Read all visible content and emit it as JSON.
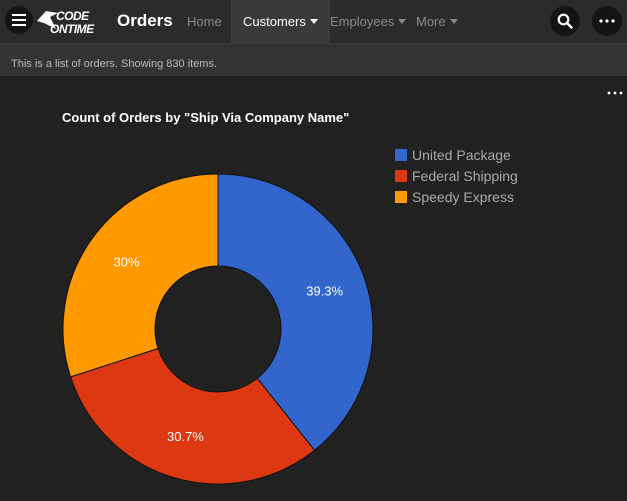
{
  "header": {
    "logo_line1": "CODE",
    "logo_line2": "ONTIME",
    "title": "Orders",
    "nav": [
      {
        "label": "Home"
      },
      {
        "label": "Customers"
      },
      {
        "label": "Employees"
      },
      {
        "label": "More"
      }
    ]
  },
  "info": {
    "text": "This is a list of orders. Showing 830 items."
  },
  "colors": {
    "united_package": "#3366cc",
    "federal_shipping": "#dc3912",
    "speedy_express": "#ff9900"
  },
  "icons": [
    "hamburger-menu-icon",
    "search-icon",
    "more-options-icon",
    "more-horizontal-icon"
  ],
  "chart_data": {
    "type": "pie",
    "title": "Count of Orders by \"Ship Via Company Name\"",
    "donut": true,
    "legend_position": "right",
    "slices": [
      {
        "label": "United Package",
        "value": 39.3,
        "display": "39.3%",
        "color": "#3366cc"
      },
      {
        "label": "Federal Shipping",
        "value": 30.7,
        "display": "30.7%",
        "color": "#dc3912"
      },
      {
        "label": "Speedy Express",
        "value": 30.0,
        "display": "30%",
        "color": "#ff9900"
      }
    ]
  }
}
